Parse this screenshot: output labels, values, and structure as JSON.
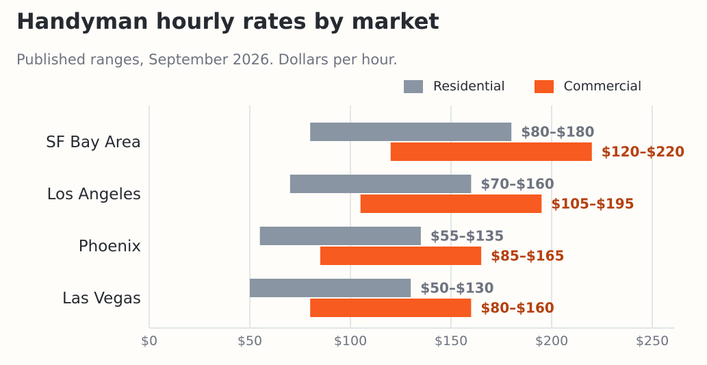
{
  "title": "Handyman hourly rates by market",
  "subtitle": "Published ranges, September 2026. Dollars per hour.",
  "colors": {
    "residential": "#8a95a3",
    "commercial": "#f75b1f",
    "residential_label": "#6e7380",
    "commercial_label": "#b5400f",
    "grid": "#e3e5ea",
    "axis_text": "#6e7380",
    "category_text": "#262a31"
  },
  "chart_data": {
    "type": "bar",
    "orientation": "horizontal",
    "style": "floating-range",
    "categories": [
      "SF Bay Area",
      "Los Angeles",
      "Phoenix",
      "Las Vegas"
    ],
    "series": [
      {
        "name": "Residential",
        "ranges": [
          [
            80,
            180
          ],
          [
            70,
            160
          ],
          [
            55,
            135
          ],
          [
            50,
            130
          ]
        ],
        "labels": [
          "$80–$180",
          "$70–$160",
          "$55–$135",
          "$50–$130"
        ]
      },
      {
        "name": "Commercial",
        "ranges": [
          [
            120,
            220
          ],
          [
            105,
            195
          ],
          [
            85,
            165
          ],
          [
            80,
            160
          ]
        ],
        "labels": [
          "$120–$220",
          "$105–$195",
          "$85–$165",
          "$80–$160"
        ]
      }
    ],
    "xlim": [
      0,
      260
    ],
    "xticks": [
      0,
      50,
      100,
      150,
      200,
      250
    ],
    "xtick_labels": [
      "$0",
      "$50",
      "$100",
      "$150",
      "$200",
      "$250"
    ],
    "grid": true,
    "legend_position": "top-right"
  }
}
